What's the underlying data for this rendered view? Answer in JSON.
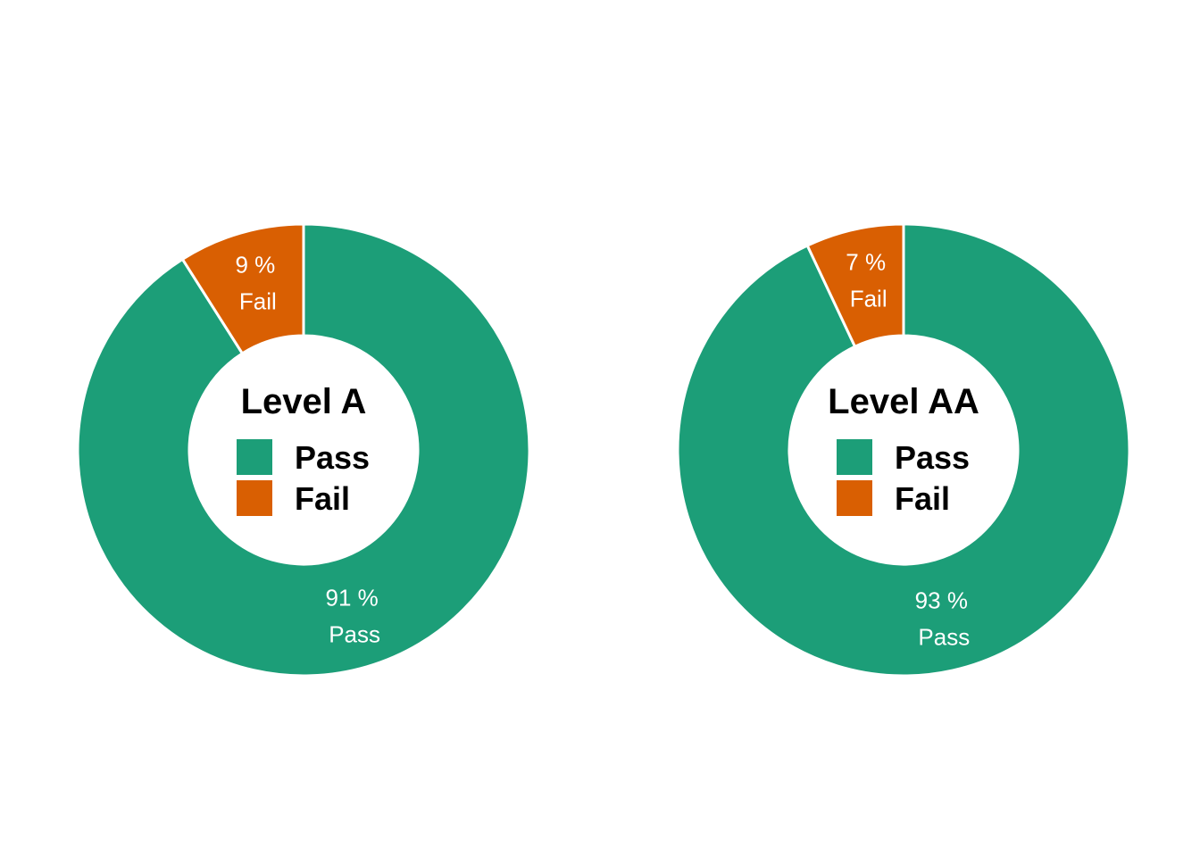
{
  "chart_data": [
    {
      "type": "pie",
      "title": "Level A",
      "labels": [
        "Pass",
        "Fail"
      ],
      "values": [
        91,
        9
      ],
      "value_labels": [
        "91 %",
        "9 %"
      ],
      "colors": [
        "#1c9e78",
        "#d95f02"
      ],
      "legend": "center",
      "donut": true
    },
    {
      "type": "pie",
      "title": "Level AA",
      "labels": [
        "Pass",
        "Fail"
      ],
      "values": [
        93,
        7
      ],
      "value_labels": [
        "93 %",
        "7 %"
      ],
      "colors": [
        "#1c9e78",
        "#d95f02"
      ],
      "legend": "center",
      "donut": true
    }
  ]
}
